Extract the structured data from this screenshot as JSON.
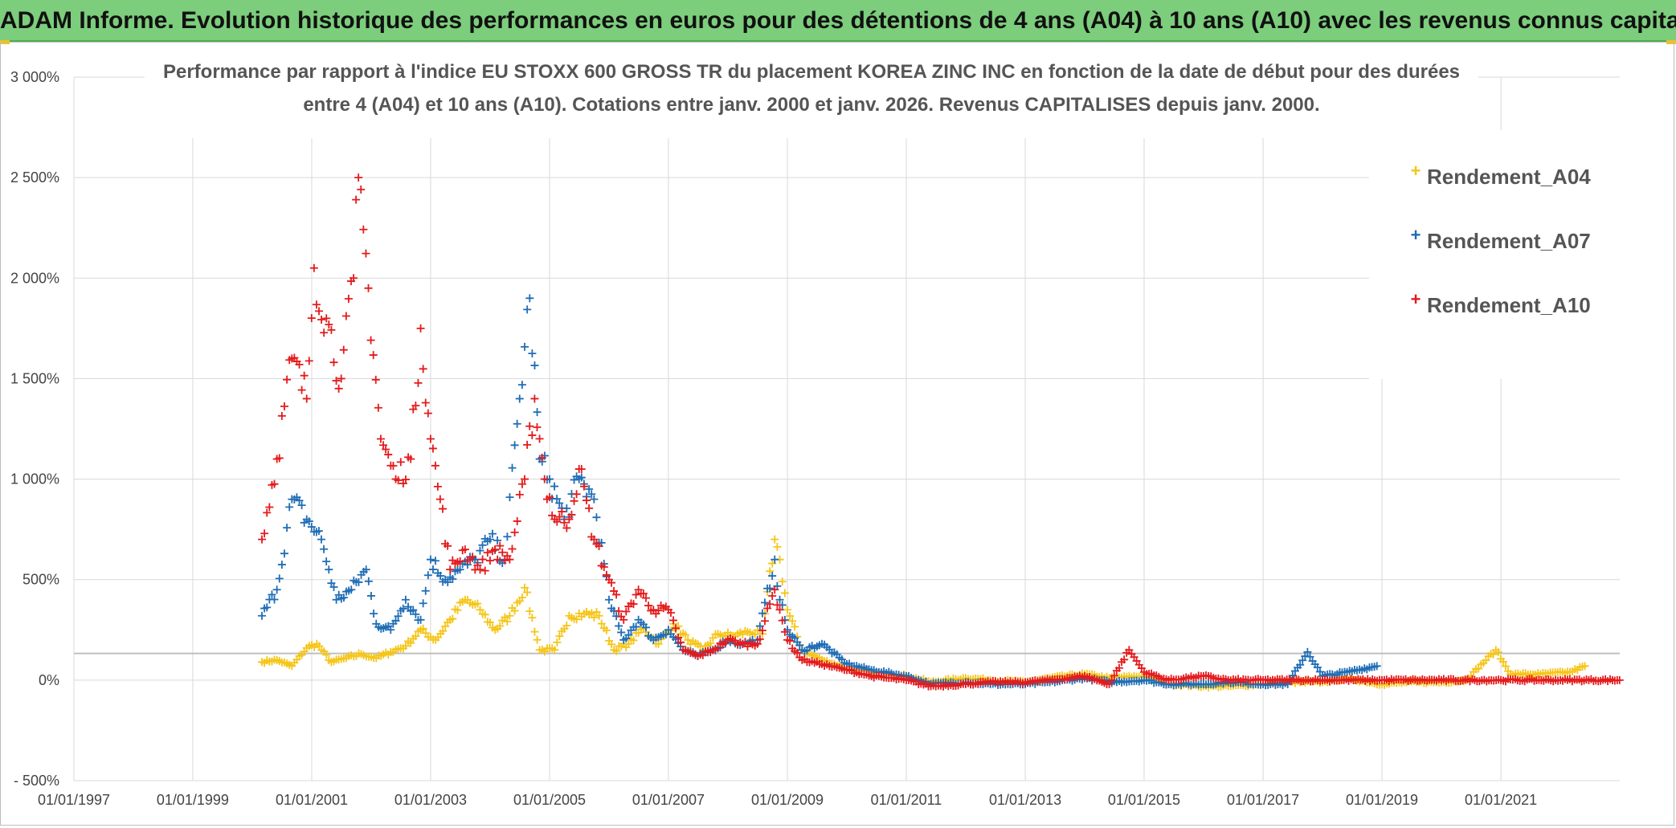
{
  "banner": {
    "title": "ADAM Informe. Evolution historique des performances en euros pour des détentions de 4 ans (A04) à 10 ans (A10) avec les revenus connus capitalisés",
    "background": "#7ccd7c"
  },
  "chart_data": {
    "type": "scatter",
    "title_line1": "Performance par rapport à l'indice EU STOXX 600 GROSS TR  du placement KOREA ZINC INC en fonction de la date de début pour des durées",
    "title_line2": "entre 4 (A04) et 10 ans (A10). Cotations entre janv. 2000 et janv. 2026. Revenus CAPITALISES depuis janv. 2000.",
    "x_tick_labels": [
      "01/01/1997",
      "01/01/1999",
      "01/01/2001",
      "01/01/2003",
      "01/01/2005",
      "01/01/2007",
      "01/01/2009",
      "01/01/2011",
      "01/01/2013",
      "01/01/2015",
      "01/01/2017",
      "01/01/2019",
      "01/01/2021"
    ],
    "y_tick_labels": [
      "- 500%",
      "0%",
      "500%",
      "1 000%",
      "1 500%",
      "2 000%",
      "2 500%",
      "3 000%"
    ],
    "y_ticks": [
      -500,
      0,
      500,
      1000,
      1500,
      2000,
      2500,
      3000
    ],
    "xlim": [
      "1997-01-01",
      "2023-01-01"
    ],
    "ylim": [
      -500,
      3000
    ],
    "reference_line_y": 133,
    "marker": "+",
    "grid": true,
    "legend_position": "top-right",
    "series": [
      {
        "name": "Rendement_A04",
        "color": "#f5c518",
        "points": [
          [
            "2000-03-01",
            90
          ],
          [
            "2000-06-01",
            100
          ],
          [
            "2000-09-01",
            70
          ],
          [
            "2000-12-01",
            160
          ],
          [
            "2001-02-01",
            180
          ],
          [
            "2001-05-01",
            90
          ],
          [
            "2001-08-01",
            110
          ],
          [
            "2001-11-01",
            130
          ],
          [
            "2002-02-01",
            110
          ],
          [
            "2002-05-01",
            140
          ],
          [
            "2002-08-01",
            170
          ],
          [
            "2002-11-01",
            250
          ],
          [
            "2003-02-01",
            200
          ],
          [
            "2003-05-01",
            300
          ],
          [
            "2003-08-01",
            400
          ],
          [
            "2003-11-01",
            350
          ],
          [
            "2004-02-01",
            250
          ],
          [
            "2004-05-01",
            320
          ],
          [
            "2004-08-01",
            460
          ],
          [
            "2004-11-01",
            150
          ],
          [
            "2005-02-01",
            150
          ],
          [
            "2005-05-01",
            320
          ],
          [
            "2005-08-01",
            330
          ],
          [
            "2005-11-01",
            320
          ],
          [
            "2006-02-01",
            150
          ],
          [
            "2006-05-01",
            180
          ],
          [
            "2006-08-01",
            260
          ],
          [
            "2006-11-01",
            180
          ],
          [
            "2007-02-01",
            280
          ],
          [
            "2007-05-01",
            200
          ],
          [
            "2007-08-01",
            150
          ],
          [
            "2007-11-01",
            230
          ],
          [
            "2008-02-01",
            220
          ],
          [
            "2008-05-01",
            240
          ],
          [
            "2008-08-01",
            230
          ],
          [
            "2008-10-15",
            700
          ],
          [
            "2008-11-15",
            600
          ],
          [
            "2009-01-01",
            350
          ],
          [
            "2009-04-01",
            150
          ],
          [
            "2009-08-01",
            100
          ],
          [
            "2010-01-01",
            60
          ],
          [
            "2010-06-01",
            40
          ],
          [
            "2011-01-01",
            20
          ],
          [
            "2011-06-01",
            -10
          ],
          [
            "2012-01-01",
            10
          ],
          [
            "2012-06-01",
            0
          ],
          [
            "2013-01-01",
            -10
          ],
          [
            "2013-06-01",
            10
          ],
          [
            "2014-01-01",
            30
          ],
          [
            "2014-06-01",
            10
          ],
          [
            "2015-01-01",
            20
          ],
          [
            "2015-06-01",
            -20
          ],
          [
            "2016-01-01",
            -30
          ],
          [
            "2016-06-01",
            -30
          ],
          [
            "2017-01-01",
            -20
          ],
          [
            "2017-06-01",
            -10
          ],
          [
            "2018-01-01",
            -10
          ],
          [
            "2018-06-01",
            10
          ],
          [
            "2019-01-01",
            -20
          ],
          [
            "2019-06-01",
            -10
          ],
          [
            "2020-01-01",
            -10
          ],
          [
            "2020-06-01",
            0
          ],
          [
            "2020-12-01",
            150
          ],
          [
            "2021-03-01",
            30
          ],
          [
            "2021-09-01",
            30
          ],
          [
            "2022-03-01",
            40
          ],
          [
            "2022-06-01",
            70
          ]
        ]
      },
      {
        "name": "Rendement_A07",
        "color": "#1f6db5",
        "points": [
          [
            "2000-03-01",
            320
          ],
          [
            "2000-06-01",
            450
          ],
          [
            "2000-09-01",
            900
          ],
          [
            "2000-12-01",
            800
          ],
          [
            "2001-03-01",
            700
          ],
          [
            "2001-06-01",
            400
          ],
          [
            "2001-09-01",
            450
          ],
          [
            "2001-12-01",
            550
          ],
          [
            "2002-02-01",
            280
          ],
          [
            "2002-05-01",
            250
          ],
          [
            "2002-08-01",
            400
          ],
          [
            "2002-11-01",
            300
          ],
          [
            "2003-01-01",
            600
          ],
          [
            "2003-04-01",
            500
          ],
          [
            "2003-07-01",
            550
          ],
          [
            "2003-10-01",
            600
          ],
          [
            "2004-01-01",
            700
          ],
          [
            "2004-04-01",
            600
          ],
          [
            "2004-07-01",
            1400
          ],
          [
            "2004-09-01",
            1900
          ],
          [
            "2004-11-01",
            1100
          ],
          [
            "2005-01-01",
            1000
          ],
          [
            "2005-04-01",
            800
          ],
          [
            "2005-07-01",
            1000
          ],
          [
            "2005-10-01",
            900
          ],
          [
            "2006-01-01",
            400
          ],
          [
            "2006-04-01",
            200
          ],
          [
            "2006-07-01",
            300
          ],
          [
            "2006-10-01",
            200
          ],
          [
            "2007-01-01",
            250
          ],
          [
            "2007-04-01",
            150
          ],
          [
            "2007-07-01",
            120
          ],
          [
            "2007-10-01",
            150
          ],
          [
            "2008-01-01",
            200
          ],
          [
            "2008-04-01",
            180
          ],
          [
            "2008-07-01",
            200
          ],
          [
            "2008-10-15",
            600
          ],
          [
            "2008-11-15",
            400
          ],
          [
            "2009-01-01",
            250
          ],
          [
            "2009-04-01",
            150
          ],
          [
            "2009-08-01",
            180
          ],
          [
            "2010-01-01",
            80
          ],
          [
            "2010-06-01",
            50
          ],
          [
            "2011-01-01",
            20
          ],
          [
            "2011-06-01",
            -20
          ],
          [
            "2012-01-01",
            -10
          ],
          [
            "2012-06-01",
            -20
          ],
          [
            "2013-01-01",
            -20
          ],
          [
            "2013-06-01",
            -10
          ],
          [
            "2014-01-01",
            10
          ],
          [
            "2014-06-01",
            -10
          ],
          [
            "2015-01-01",
            0
          ],
          [
            "2015-06-01",
            -20
          ],
          [
            "2016-01-01",
            -20
          ],
          [
            "2016-06-01",
            -10
          ],
          [
            "2017-01-01",
            -20
          ],
          [
            "2017-06-01",
            -20
          ],
          [
            "2017-10-01",
            140
          ],
          [
            "2018-01-01",
            20
          ],
          [
            "2018-06-01",
            40
          ],
          [
            "2018-12-01",
            70
          ]
        ]
      },
      {
        "name": "Rendement_A10",
        "color": "#e41a1c",
        "points": [
          [
            "2000-03-01",
            700
          ],
          [
            "2000-06-01",
            1100
          ],
          [
            "2000-09-01",
            1600
          ],
          [
            "2000-12-01",
            1400
          ],
          [
            "2001-01-15",
            2050
          ],
          [
            "2001-04-01",
            1800
          ],
          [
            "2001-07-01",
            1500
          ],
          [
            "2001-09-15",
            2000
          ],
          [
            "2001-10-15",
            2500
          ],
          [
            "2001-12-15",
            1950
          ],
          [
            "2002-03-01",
            1200
          ],
          [
            "2002-06-01",
            1000
          ],
          [
            "2002-09-01",
            1100
          ],
          [
            "2002-11-01",
            1750
          ],
          [
            "2003-01-01",
            1200
          ],
          [
            "2003-03-01",
            900
          ],
          [
            "2003-05-01",
            550
          ],
          [
            "2003-08-01",
            650
          ],
          [
            "2003-11-01",
            550
          ],
          [
            "2004-02-01",
            650
          ],
          [
            "2004-05-01",
            600
          ],
          [
            "2004-08-01",
            1000
          ],
          [
            "2004-10-01",
            1400
          ],
          [
            "2004-12-01",
            1000
          ],
          [
            "2005-02-01",
            800
          ],
          [
            "2005-05-01",
            800
          ],
          [
            "2005-07-01",
            1050
          ],
          [
            "2005-10-01",
            700
          ],
          [
            "2006-01-01",
            500
          ],
          [
            "2006-04-01",
            300
          ],
          [
            "2006-07-01",
            450
          ],
          [
            "2006-10-01",
            350
          ],
          [
            "2007-01-01",
            350
          ],
          [
            "2007-04-01",
            150
          ],
          [
            "2007-07-01",
            120
          ],
          [
            "2007-10-01",
            150
          ],
          [
            "2008-01-01",
            200
          ],
          [
            "2008-04-01",
            180
          ],
          [
            "2008-07-01",
            180
          ],
          [
            "2008-10-15",
            450
          ],
          [
            "2008-11-15",
            350
          ],
          [
            "2009-01-01",
            200
          ],
          [
            "2009-04-01",
            100
          ],
          [
            "2009-08-01",
            80
          ],
          [
            "2010-01-01",
            50
          ],
          [
            "2010-06-01",
            20
          ],
          [
            "2011-01-01",
            0
          ],
          [
            "2011-06-01",
            -30
          ],
          [
            "2012-01-01",
            -20
          ],
          [
            "2012-06-01",
            -10
          ],
          [
            "2013-01-01",
            -10
          ],
          [
            "2013-06-01",
            0
          ],
          [
            "2014-01-01",
            20
          ],
          [
            "2014-06-01",
            -20
          ],
          [
            "2014-10-01",
            150
          ],
          [
            "2015-01-01",
            40
          ],
          [
            "2015-06-01",
            0
          ],
          [
            "2016-01-01",
            20
          ],
          [
            "2016-06-01",
            0
          ],
          [
            "2017-01-01",
            0
          ],
          [
            "2018-01-01",
            0
          ],
          [
            "2019-01-01",
            0
          ],
          [
            "2020-01-01",
            0
          ],
          [
            "2021-01-01",
            0
          ],
          [
            "2022-01-01",
            0
          ],
          [
            "2022-12-31",
            0
          ]
        ]
      }
    ]
  }
}
